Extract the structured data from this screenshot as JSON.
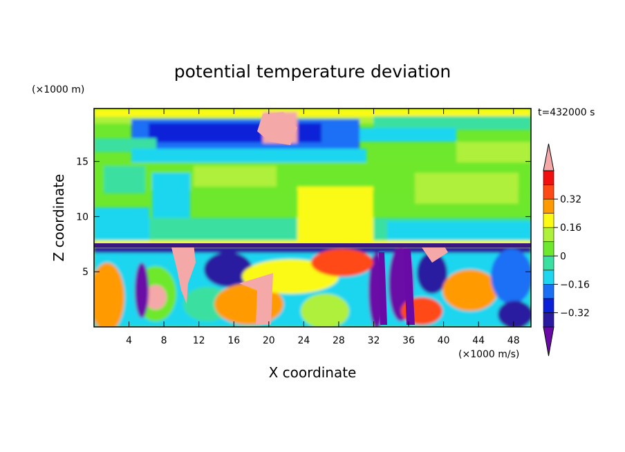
{
  "chart_data": {
    "type": "heatmap",
    "title": "potential temperature deviation",
    "xlabel": "X coordinate",
    "ylabel": "Z coordinate",
    "x_unit": "(×1000 m/s)",
    "y_unit": "(×1000 m)",
    "time_label": "t=432000 s",
    "xlim": [
      0,
      50
    ],
    "ylim": [
      0,
      19.8
    ],
    "x_ticks": [
      4,
      8,
      12,
      16,
      20,
      24,
      28,
      32,
      36,
      40,
      44,
      48
    ],
    "y_ticks": [
      5,
      10,
      15
    ],
    "colorbar": {
      "labels": [
        "0.32",
        "0.16",
        "0",
        "−0.16",
        "−0.32"
      ],
      "label_values": [
        0.32,
        0.16,
        0,
        -0.16,
        -0.32
      ],
      "levels": [
        {
          "min": -0.48,
          "max": -0.4,
          "color": "#6a0aa6"
        },
        {
          "min": -0.4,
          "max": -0.32,
          "color": "#2a1aa0"
        },
        {
          "min": -0.32,
          "max": -0.24,
          "color": "#0a20d8"
        },
        {
          "min": -0.24,
          "max": -0.16,
          "color": "#1a6ff5"
        },
        {
          "min": -0.16,
          "max": -0.08,
          "color": "#1fd6f0"
        },
        {
          "min": -0.08,
          "max": 0,
          "color": "#3ae0a0"
        },
        {
          "min": 0,
          "max": 0.08,
          "color": "#6ee82c"
        },
        {
          "min": 0.08,
          "max": 0.16,
          "color": "#aef03a"
        },
        {
          "min": 0.16,
          "max": 0.24,
          "color": "#fafa14"
        },
        {
          "min": 0.24,
          "max": 0.32,
          "color": "#ff9a00"
        },
        {
          "min": 0.32,
          "max": 0.4,
          "color": "#ff4a18"
        },
        {
          "min": 0.4,
          "max": 0.48,
          "color": "#f01010"
        },
        {
          "min": 0.48,
          "max": 0.56,
          "color": "#f4a8a8"
        }
      ]
    }
  }
}
